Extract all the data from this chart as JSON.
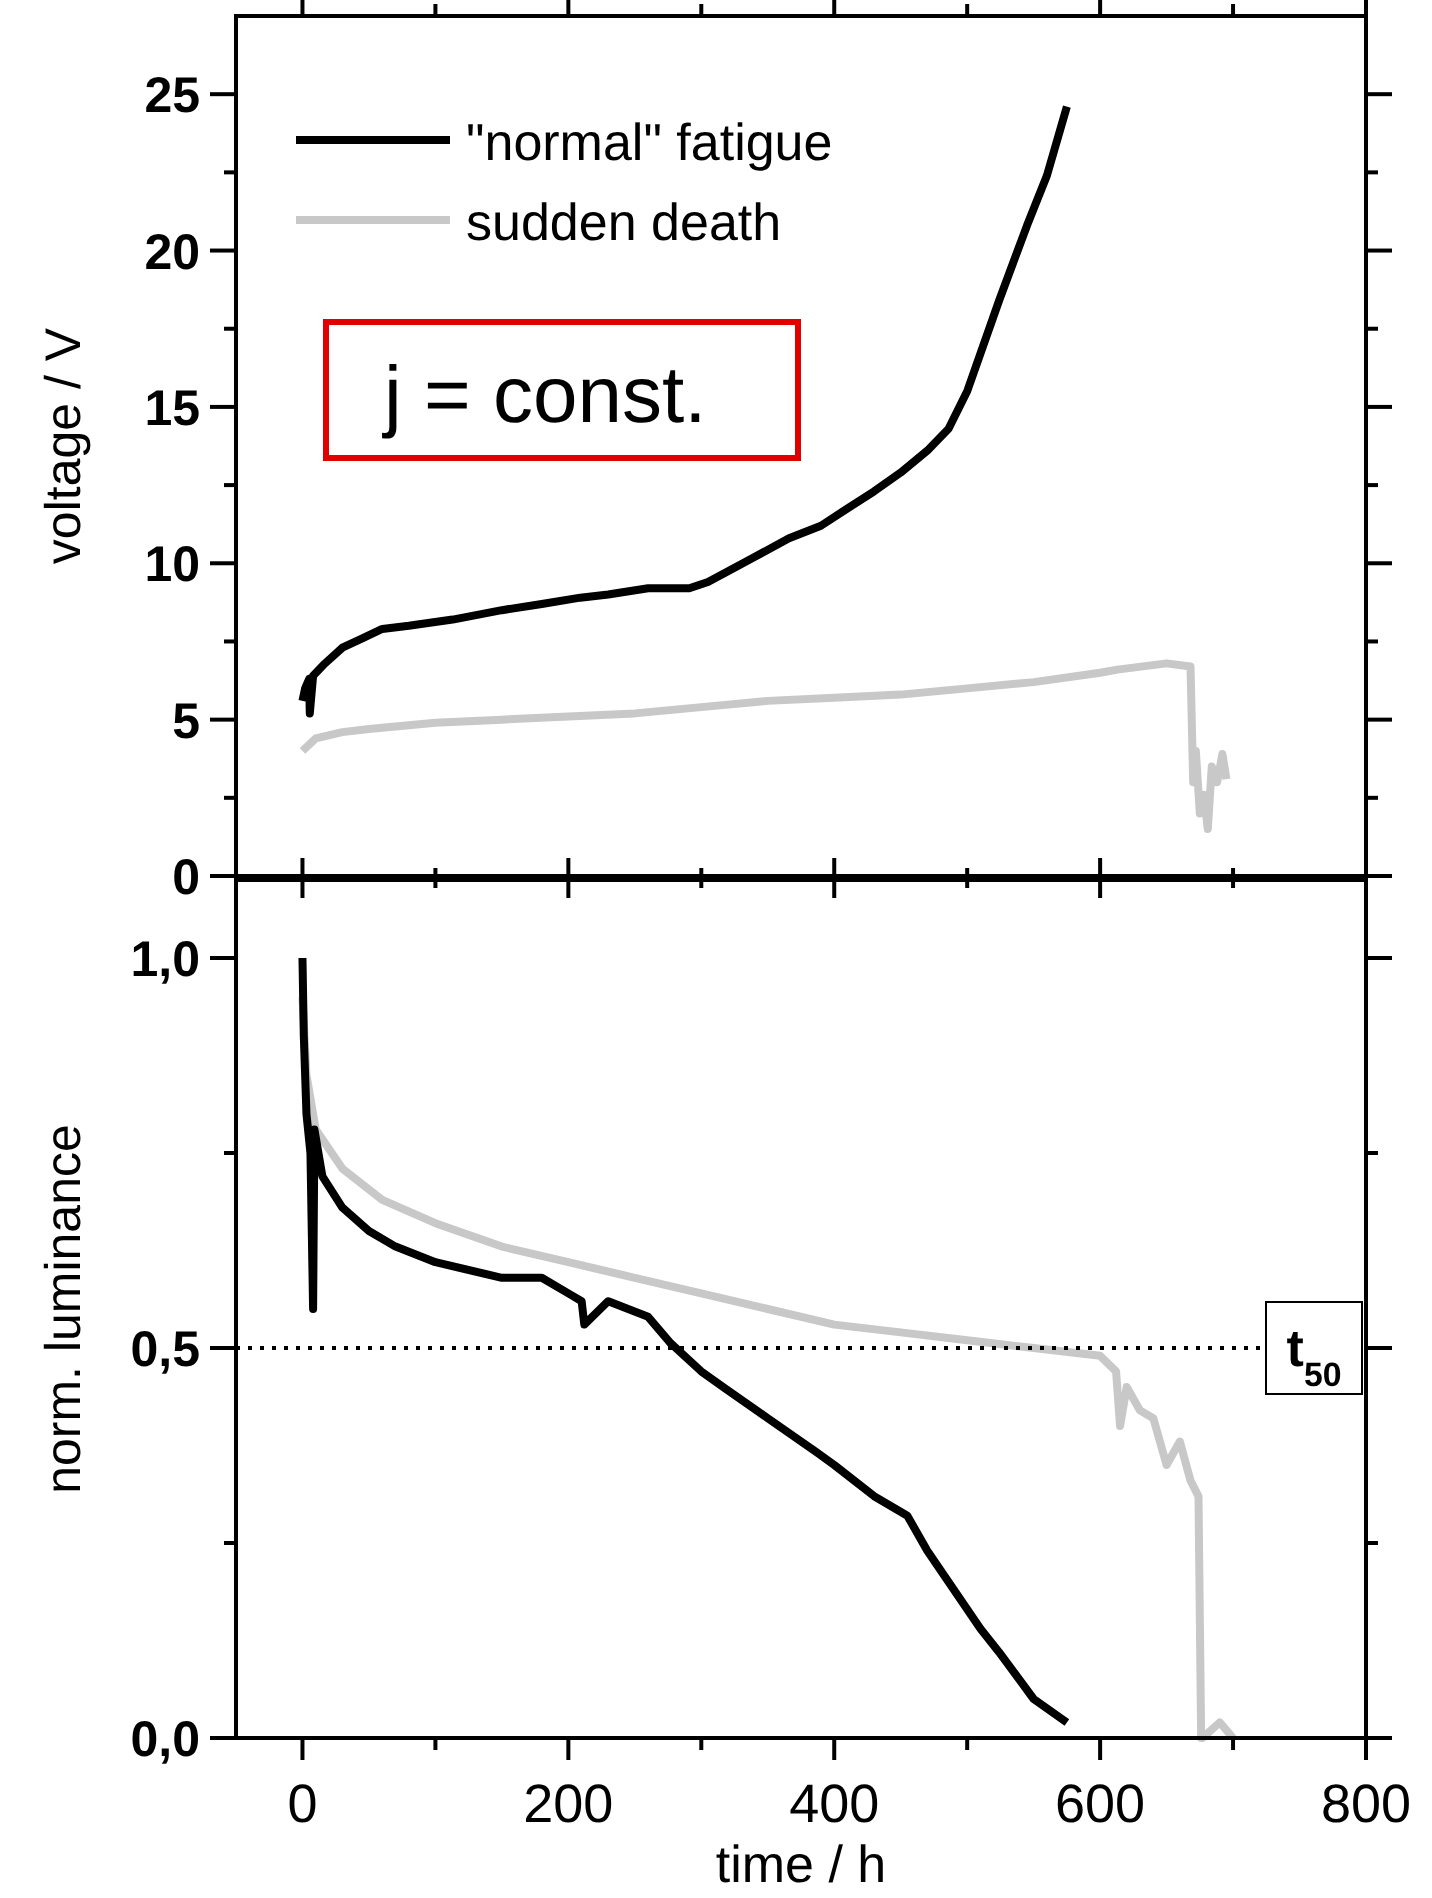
{
  "chart_data": [
    {
      "type": "line",
      "ylabel": "voltage / V",
      "xlim": [
        -50,
        800
      ],
      "ylim": [
        0,
        27.5
      ],
      "xticks": [
        0,
        {
          "value": 100,
          "label": null
        },
        200,
        {
          "value": 300,
          "label": null
        },
        400,
        {
          "value": 500,
          "label": null
        },
        600,
        {
          "value": 700,
          "label": null
        },
        800
      ],
      "yticks": [
        0,
        {
          "value": 2.5,
          "label": null
        },
        5,
        {
          "value": 7.5,
          "label": null
        },
        10,
        {
          "value": 12.5,
          "label": null
        },
        15,
        {
          "value": 17.5,
          "label": null
        },
        20,
        {
          "value": 22.5,
          "label": null
        },
        25
      ],
      "tick_labels": "y",
      "legend": "top left",
      "grid": false,
      "line_style": "solid",
      "annotations": [
        "j = const."
      ],
      "series": [
        {
          "name": "\"normal\" fatigue",
          "color": "#000000",
          "x": [
            0,
            2,
            5,
            5.5,
            8,
            17,
            30,
            45,
            60,
            80,
            113,
            150,
            180,
            209,
            230,
            260,
            291,
            305,
            318,
            340,
            366,
            390,
            408,
            430,
            450,
            470,
            486,
            500,
            524,
            545,
            560,
            575
          ],
          "values": [
            5.6,
            6.0,
            6.3,
            5.2,
            6.4,
            6.8,
            7.3,
            7.6,
            7.9,
            8.0,
            8.2,
            8.5,
            8.7,
            8.9,
            9.0,
            9.2,
            9.2,
            9.4,
            9.7,
            10.2,
            10.8,
            11.2,
            11.7,
            12.3,
            12.9,
            13.6,
            14.3,
            15.5,
            18.4,
            20.8,
            22.4,
            24.6
          ]
        },
        {
          "name": "sudden death",
          "color": "#c8c8c8",
          "x": [
            0,
            10,
            30,
            50,
            100,
            150,
            200,
            250,
            300,
            350,
            400,
            450,
            500,
            550,
            600,
            613,
            650,
            668,
            670,
            672,
            675,
            678,
            681,
            684,
            688,
            692,
            695
          ],
          "values": [
            4.0,
            4.4,
            4.6,
            4.7,
            4.9,
            5.0,
            5.1,
            5.2,
            5.4,
            5.6,
            5.7,
            5.8,
            6.0,
            6.2,
            6.5,
            6.6,
            6.8,
            6.7,
            3.0,
            4.0,
            2.0,
            2.6,
            1.5,
            3.5,
            3.0,
            3.9,
            3.1
          ]
        }
      ]
    },
    {
      "type": "line",
      "ylabel": "norm. luminance",
      "xlabel": "time / h",
      "xlim": [
        -50,
        800
      ],
      "ylim": [
        0,
        1.1
      ],
      "xticks": [
        0,
        {
          "value": 100,
          "label": null
        },
        200,
        {
          "value": 300,
          "label": null
        },
        400,
        {
          "value": 500,
          "label": null
        },
        600,
        {
          "value": 700,
          "label": null
        },
        800
      ],
      "yticks": [
        {
          "value": 0,
          "label": "0,0"
        },
        {
          "value": 0.25,
          "label": null
        },
        {
          "value": 0.5,
          "label": "0,5"
        },
        {
          "value": 0.75,
          "label": null
        },
        {
          "value": 1,
          "label": "1,0"
        }
      ],
      "grid": false,
      "line_style": "solid",
      "ref_lines": [
        {
          "axis": "y",
          "value": 0.5,
          "label": "t$_{50}$",
          "color": "#000000",
          "line_style": "dotted"
        }
      ],
      "series": [
        {
          "color": "#c8c8c8",
          "x": [
            0,
            3,
            10,
            30,
            60,
            100,
            150,
            200,
            250,
            300,
            350,
            400,
            450,
            500,
            550,
            600,
            612,
            615,
            620,
            630,
            640,
            650,
            660,
            668,
            674,
            676,
            677,
            690,
            700
          ],
          "values": [
            0.95,
            0.85,
            0.78,
            0.73,
            0.69,
            0.66,
            0.63,
            0.61,
            0.59,
            0.57,
            0.55,
            0.53,
            0.52,
            0.51,
            0.5,
            0.49,
            0.47,
            0.4,
            0.45,
            0.42,
            0.41,
            0.35,
            0.38,
            0.33,
            0.31,
            0.0,
            0.0,
            0.02,
            0.0
          ]
        },
        {
          "color": "#000000",
          "x": [
            0,
            1,
            3,
            6,
            8,
            9,
            15,
            30,
            50,
            70,
            100,
            150,
            180,
            200,
            210,
            212,
            230,
            260,
            277,
            300,
            318,
            350,
            387,
            400,
            430,
            455,
            470,
            490,
            510,
            524,
            550,
            575
          ],
          "values": [
            1.0,
            0.9,
            0.8,
            0.75,
            0.55,
            0.78,
            0.72,
            0.68,
            0.65,
            0.63,
            0.61,
            0.59,
            0.59,
            0.57,
            0.56,
            0.53,
            0.56,
            0.54,
            0.506,
            0.47,
            0.448,
            0.41,
            0.366,
            0.35,
            0.31,
            0.285,
            0.24,
            0.19,
            0.14,
            0.11,
            0.05,
            0.02
          ]
        }
      ]
    }
  ]
}
